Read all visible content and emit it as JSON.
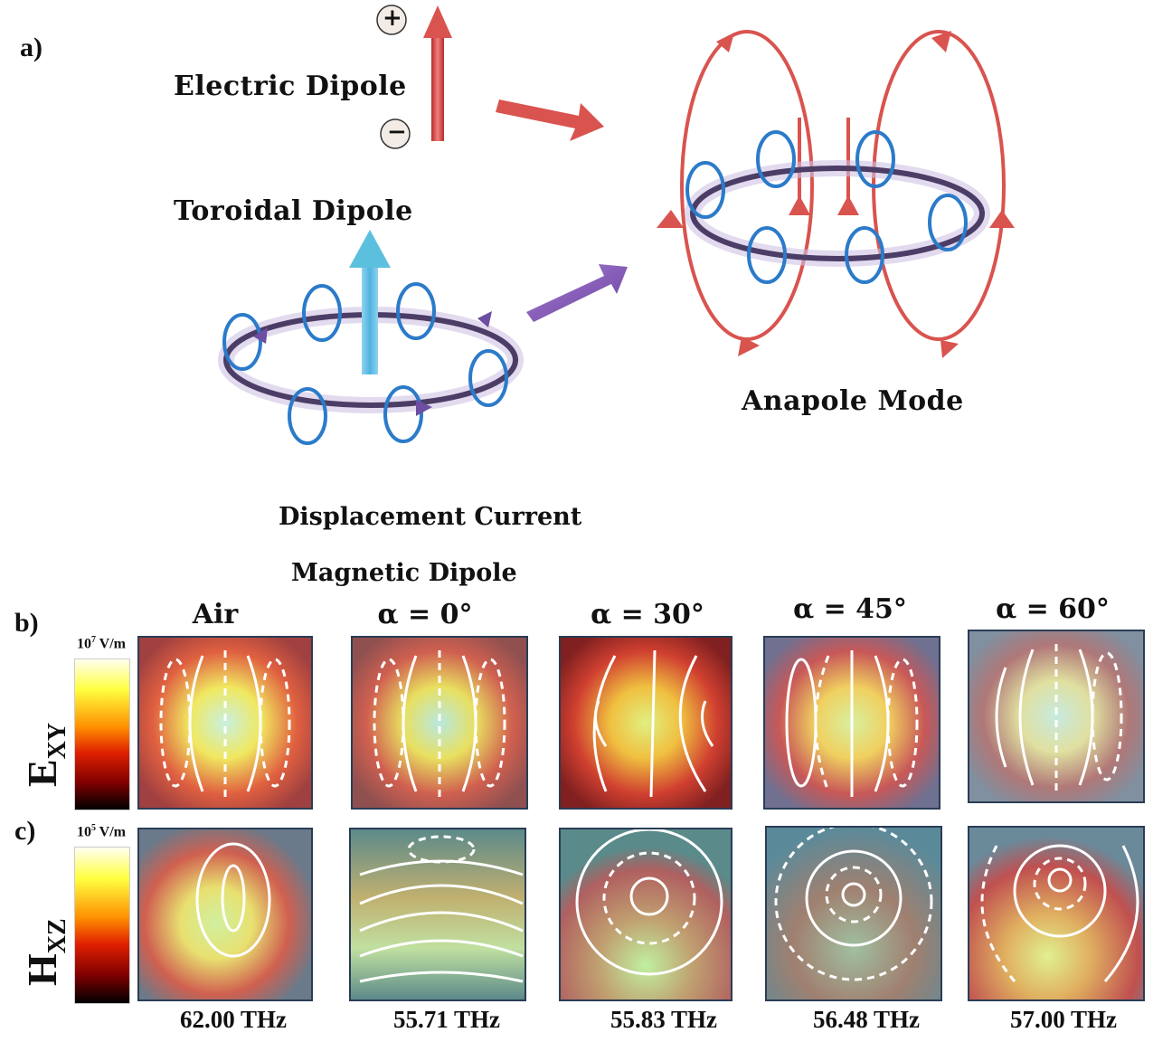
{
  "panel_a": {
    "letter": "a)",
    "electric_dipole_label": "Electric Dipole",
    "plus_sign": "+",
    "minus_sign": "−",
    "toroidal_dipole_label": "Toroidal Dipole",
    "anapole_label": "Anapole Mode",
    "legend": {
      "displacement_current": "Displacement Current",
      "magnetic_dipole": "Magnetic Dipole"
    },
    "colors": {
      "electric_arrow": "#d9534f",
      "toroidal_arrow": "#5bc0de",
      "purple_arrow": "#8a55b8",
      "current_loops": "#2b7bc9",
      "ring": "#6b5a8c"
    }
  },
  "panel_b": {
    "letter": "b)",
    "row_label": "E",
    "row_label_sub": "XY",
    "colorbar_unit": "10",
    "colorbar_exp": "7",
    "colorbar_suffix": " V/m"
  },
  "panel_c": {
    "letter": "c)",
    "row_label": "H",
    "row_label_sub": "XZ",
    "colorbar_unit": "10",
    "colorbar_exp": "5",
    "colorbar_suffix": " V/m"
  },
  "columns": [
    {
      "header": "Air",
      "frequency": "62.00 THz"
    },
    {
      "header": "α = 0°",
      "frequency": "55.71 THz"
    },
    {
      "header": "α = 30°",
      "frequency": "55.83 THz"
    },
    {
      "header": "α = 45°",
      "frequency": "56.48 THz"
    },
    {
      "header": "α = 60°",
      "frequency": "57.00 THz"
    }
  ]
}
